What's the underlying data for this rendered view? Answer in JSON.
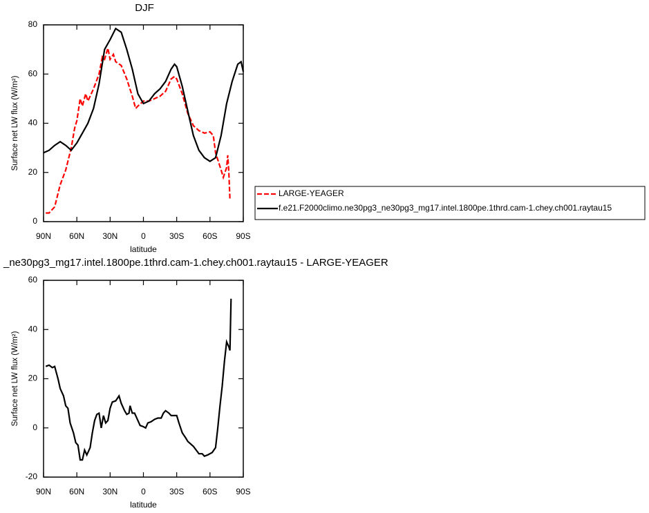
{
  "chart_data": [
    {
      "type": "line",
      "title": "DJF",
      "xlabel": "latitude",
      "ylabel": "Surface net LW flux (W/m²)",
      "xlim": [
        90,
        -90
      ],
      "xticks": [
        {
          "value": 90,
          "label": "90N"
        },
        {
          "value": 60,
          "label": "60N"
        },
        {
          "value": 30,
          "label": "30N"
        },
        0,
        {
          "value": -30,
          "label": "30S"
        },
        {
          "value": -60,
          "label": "60S"
        },
        {
          "value": -90,
          "label": "90S"
        }
      ],
      "ylim": [
        0,
        80
      ],
      "yticks": [
        0,
        20,
        40,
        60,
        80
      ],
      "legend": "right",
      "series": [
        {
          "name": "LARGE-YEAGER",
          "color": "#ff0000",
          "dashed": true,
          "x": [
            88,
            85,
            80,
            75,
            70,
            65,
            62,
            60,
            57,
            55,
            52,
            50,
            45,
            40,
            37,
            35,
            32,
            30,
            27,
            25,
            20,
            15,
            10,
            7,
            5,
            0,
            -5,
            -10,
            -15,
            -20,
            -25,
            -28,
            -30,
            -35,
            -40,
            -45,
            -50,
            -55,
            -60,
            -63,
            -65,
            -70,
            -72,
            -75,
            -76,
            -77,
            -78
          ],
          "values": [
            3.5,
            3.5,
            6,
            15,
            21,
            30,
            38,
            41,
            50,
            47,
            52,
            49,
            54,
            60,
            67,
            66,
            70.5,
            66,
            68,
            65,
            63.5,
            58,
            51,
            46,
            47,
            49,
            49,
            50,
            51,
            53,
            58,
            59,
            58,
            52,
            44,
            39,
            37,
            36,
            36.5,
            35,
            28,
            21,
            18,
            22,
            27,
            20,
            9
          ]
        },
        {
          "name": "f.e21.F2000climo.ne30pg3_ne30pg3_mg17.intel.1800pe.1thrd.cam-1.chey.ch001.raytau15",
          "color": "#000000",
          "dashed": false,
          "x": [
            90,
            85,
            80,
            75,
            70,
            65,
            60,
            55,
            50,
            45,
            40,
            35,
            30,
            25,
            20,
            15,
            10,
            5,
            0,
            -5,
            -10,
            -15,
            -20,
            -25,
            -28,
            -30,
            -35,
            -40,
            -45,
            -50,
            -55,
            -60,
            -65,
            -70,
            -75,
            -80,
            -85,
            -88,
            -90
          ],
          "values": [
            28,
            29,
            31,
            32.5,
            31,
            29,
            32,
            36,
            40,
            46,
            56,
            70,
            74,
            78.5,
            77,
            70,
            62,
            52,
            48,
            49,
            52,
            54,
            57,
            62,
            64,
            63,
            55,
            45,
            35,
            29,
            26,
            24.5,
            26,
            35,
            48,
            57,
            64,
            65,
            61
          ]
        }
      ]
    },
    {
      "type": "line",
      "title": "_ne30pg3_mg17.intel.1800pe.1thrd.cam-1.chey.ch001.raytau15 - LARGE-YEAGER",
      "xlabel": "latitude",
      "ylabel": "Surface net LW flux (W/m²)",
      "xlim": [
        90,
        -90
      ],
      "xticks": [
        {
          "value": 90,
          "label": "90N"
        },
        {
          "value": 60,
          "label": "60N"
        },
        {
          "value": 30,
          "label": "30N"
        },
        0,
        {
          "value": -30,
          "label": "30S"
        },
        {
          "value": -60,
          "label": "60S"
        },
        {
          "value": -90,
          "label": "90S"
        }
      ],
      "ylim": [
        -20,
        60
      ],
      "yticks": [
        -20,
        0,
        20,
        40,
        60
      ],
      "series": [
        {
          "color": "#000000",
          "x": [
            88,
            85,
            82,
            80,
            77,
            75,
            72,
            70,
            68,
            66,
            63,
            61,
            59,
            57,
            55,
            53,
            51,
            48,
            46,
            44,
            42,
            40,
            38,
            36,
            34,
            32,
            30,
            28,
            25,
            22,
            20,
            17,
            15,
            13,
            12,
            10,
            8,
            5,
            3,
            0,
            -2,
            -4,
            -7,
            -10,
            -13,
            -16,
            -18,
            -20,
            -23,
            -25,
            -28,
            -30,
            -32,
            -35,
            -38,
            -40,
            -45,
            -50,
            -53,
            -55,
            -58,
            -62,
            -65,
            -67,
            -69,
            -71,
            -73,
            -74,
            -75,
            -77,
            -78,
            -79
          ],
          "values": [
            25,
            25.5,
            24.5,
            25,
            20,
            16,
            13,
            9,
            8,
            2,
            -2,
            -6,
            -7,
            -13,
            -13,
            -9,
            -11,
            -8,
            -2,
            3,
            5.5,
            6,
            0,
            5,
            2,
            3,
            8,
            10.5,
            11,
            13,
            10,
            7,
            5.5,
            6,
            9,
            6,
            6,
            3,
            1,
            0.5,
            0,
            2,
            2.5,
            3.5,
            4,
            4,
            6,
            7,
            6,
            5,
            5,
            5,
            2,
            -2,
            -4,
            -5.5,
            -7.5,
            -10.5,
            -10.5,
            -11.5,
            -11,
            -10,
            -8,
            0,
            9,
            17,
            27,
            31,
            35,
            33,
            31.5,
            52.5
          ]
        }
      ]
    }
  ]
}
